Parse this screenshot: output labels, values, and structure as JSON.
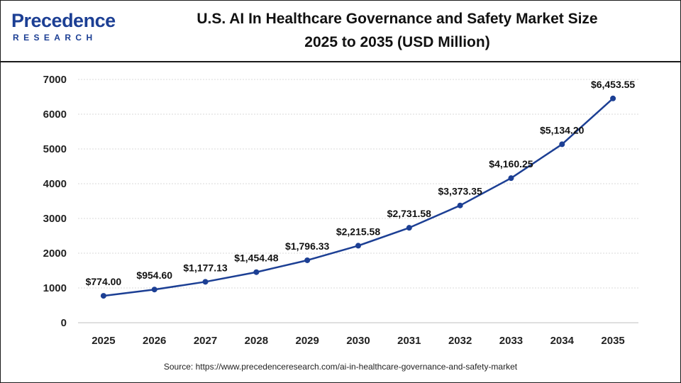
{
  "header": {
    "logo_main": "Precedence",
    "logo_sub": "RESEARCH",
    "title_line1": "U.S. AI In Healthcare Governance and Safety Market Size",
    "title_line2": "2025 to 2035 (USD Million)"
  },
  "colors": {
    "line": "#1c3f94",
    "brand": "#1c3f94",
    "grid": "#d9d9d9"
  },
  "chart_data": {
    "type": "line",
    "title": "U.S. AI In Healthcare Governance and Safety Market Size 2025 to 2035 (USD Million)",
    "xlabel": "",
    "ylabel": "",
    "categories": [
      "2025",
      "2026",
      "2027",
      "2028",
      "2029",
      "2030",
      "2031",
      "2032",
      "2033",
      "2034",
      "2035"
    ],
    "series": [
      {
        "values": [
          774.0,
          954.6,
          1177.13,
          1454.48,
          1796.33,
          2215.58,
          2731.58,
          3373.35,
          4160.25,
          5134.2,
          6453.55
        ],
        "labels": [
          "$774.00",
          "$954.60",
          "$1,177.13",
          "$1,454.48",
          "$1,796.33",
          "$2,215.58",
          "$2,731.58",
          "$3,373.35",
          "$4,160.25",
          "$5,134.20",
          "$6,453.55"
        ]
      }
    ],
    "ylim": [
      0,
      7000
    ],
    "yticks": [
      0,
      1000,
      2000,
      3000,
      4000,
      5000,
      6000,
      7000
    ],
    "ytick_labels": [
      "0",
      "1000",
      "2000",
      "3000",
      "4000",
      "5000",
      "6000",
      "7000"
    ],
    "grid": true,
    "legend": "none"
  },
  "footer": {
    "source": "Source: https://www.precedenceresearch.com/ai-in-healthcare-governance-and-safety-market"
  }
}
